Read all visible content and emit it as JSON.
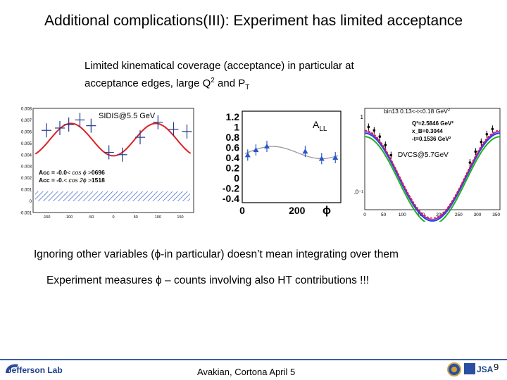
{
  "slide": {
    "title": "Additional complications(III): Experiment has limited acceptance",
    "subtitle_line1": "Limited kinematical coverage (acceptance) in particular at",
    "subtitle_line2_pre": "acceptance edges, large Q",
    "subtitle_sup": "2",
    "subtitle_line2_mid": " and P",
    "subtitle_sub": "T",
    "ignore_text": "Ignoring other variables (ϕ-in particular)  doesn’t mean integrating over them",
    "measure_text": "Experiment measures ϕ – counts involving also HT contributions !!!",
    "footer": "Avakian, Cortona  April 5",
    "page_number": "9",
    "logo_left": "Jefferson Lab",
    "logo_right": "JSA"
  },
  "panel1": {
    "label": "SIDIS@5.5 GeV",
    "y_ticks": [
      "0.008",
      "0.007",
      "0.006",
      "0.005",
      "0.004",
      "0.003",
      "0.002",
      "0.001",
      "0",
      "-0.001"
    ],
    "x_ticks": [
      "-150",
      "-100",
      "-50",
      "0",
      "50",
      "100",
      "150"
    ],
    "acc_line1": "Acc = -0.0",
    "acc_line1_mid": "< cos ϕ >",
    "acc_line1_end": "0696",
    "acc_line2": "Acc = -0.",
    "acc_line2_mid": "< cos 2ϕ >",
    "acc_line2_end": "1518"
  },
  "panel2": {
    "y_ticks": [
      "1.2",
      "1",
      "0.8",
      "0.6",
      "0.4",
      "0.2",
      "0",
      "-0.2",
      "-0.4"
    ],
    "x_ticks": [
      "0",
      "200"
    ],
    "xlabel": "ϕ",
    "label_main": "A",
    "label_sub": "LL"
  },
  "panel3": {
    "header": "bin13  0.13<-t<0.18 GeV",
    "header_sup": "2",
    "q2": "Q²=2.5846 GeV²",
    "xb": "x_B=0.3044",
    "t": "-t=0.1536 GeV²",
    "label": "DVCS@5.7GeV",
    "y_ticks": [
      "1",
      "10⁻¹"
    ],
    "x_ticks": [
      "0",
      "50",
      "100",
      "150",
      "200",
      "250",
      "300",
      "350"
    ]
  },
  "chart_data": [
    {
      "type": "scatter",
      "title": "SIDIS@5.5 GeV",
      "x": [
        -150,
        -120,
        -100,
        -75,
        -50,
        -10,
        20,
        60,
        100,
        135,
        165
      ],
      "y": [
        0.0061,
        0.0063,
        0.0066,
        0.007,
        0.0065,
        0.0042,
        0.004,
        0.0055,
        0.0068,
        0.0062,
        0.006
      ],
      "xlim": [
        -180,
        180
      ],
      "ylim": [
        -0.001,
        0.008
      ]
    },
    {
      "type": "scatter",
      "title": "A_LL",
      "x": [
        20,
        50,
        90,
        230,
        290,
        340
      ],
      "y": [
        0.45,
        0.55,
        0.62,
        0.52,
        0.38,
        0.4
      ],
      "xlim": [
        0,
        360
      ],
      "ylim": [
        -0.4,
        1.2
      ]
    },
    {
      "type": "line",
      "title": "DVCS@5.7GeV",
      "x": [
        0,
        25,
        50,
        75,
        100,
        125,
        150,
        175,
        200,
        225,
        250,
        275,
        300,
        325,
        350
      ],
      "y": [
        0.62,
        0.55,
        0.4,
        0.25,
        0.15,
        0.1,
        0.08,
        0.075,
        0.08,
        0.1,
        0.15,
        0.25,
        0.4,
        0.55,
        0.62
      ],
      "xlim": [
        0,
        360
      ],
      "ylim": [
        0.06,
        1.0
      ]
    }
  ]
}
